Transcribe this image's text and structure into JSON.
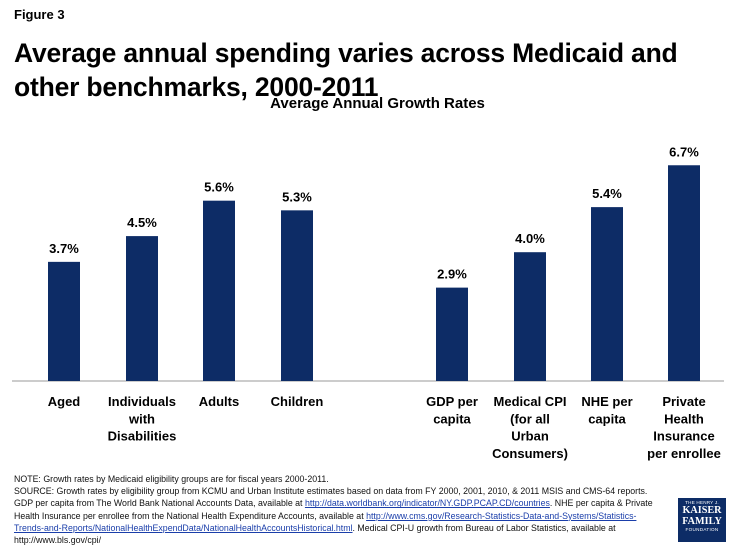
{
  "figure_label": "Figure 3",
  "title": "Average annual spending varies across Medicaid and other benchmarks, 2000-2011",
  "chart_data": {
    "type": "bar",
    "title": "Average Annual Growth Rates",
    "xlabel": "",
    "ylabel": "",
    "ylim": [
      0,
      7.0
    ],
    "grid": false,
    "legend": "none",
    "bar_color": "#0d2c66",
    "categories": [
      [
        "Aged"
      ],
      [
        "Individuals",
        "with",
        "Disabilities"
      ],
      [
        "Adults"
      ],
      [
        "Children"
      ],
      [
        "GDP per",
        "capita"
      ],
      [
        "Medical CPI",
        "(for all",
        "Urban",
        "Consumers)"
      ],
      [
        "NHE per",
        "capita"
      ],
      [
        "Private",
        "Health",
        "Insurance",
        "per enrollee"
      ]
    ],
    "values": [
      3.7,
      4.5,
      5.6,
      5.3,
      2.9,
      4.0,
      5.4,
      6.7
    ],
    "value_labels": [
      "3.7%",
      "4.5%",
      "5.6%",
      "5.3%",
      "2.9%",
      "4.0%",
      "5.4%",
      "6.7%"
    ]
  },
  "footer": {
    "note": "NOTE: Growth rates by Medicaid eligibility groups are for fiscal years 2000-2011.",
    "source_1": "SOURCE: Growth rates by eligibility group from KCMU and Urban Institute estimates based on data from FY 2000, 2001, 2010, & 2011 MSIS and CMS-64 reports. GDP per capita from The World Bank National Accounts Data, available at ",
    "link_1": "http://data.worldbank.org/indicator/NY.GDP.PCAP.CD/countries",
    "source_2": ".  NHE per capita & Private Health Insurance per enrollee from the National Health Expenditure Accounts, available at ",
    "link_2": "http://www.cms.gov/Research-Statistics-Data-and-Systems/Statistics-Trends-and-Reports/NationalHealthExpendData/NationalHealthAccountsHistorical.html",
    "source_3": ". Medical CPI-U growth from Bureau of Labor Statistics, available at http://www.bls.gov/cpi/"
  },
  "logo": {
    "line1": "THE HENRY J.",
    "line2": "KAISER",
    "line3": "FAMILY",
    "line4": "FOUNDATION"
  }
}
